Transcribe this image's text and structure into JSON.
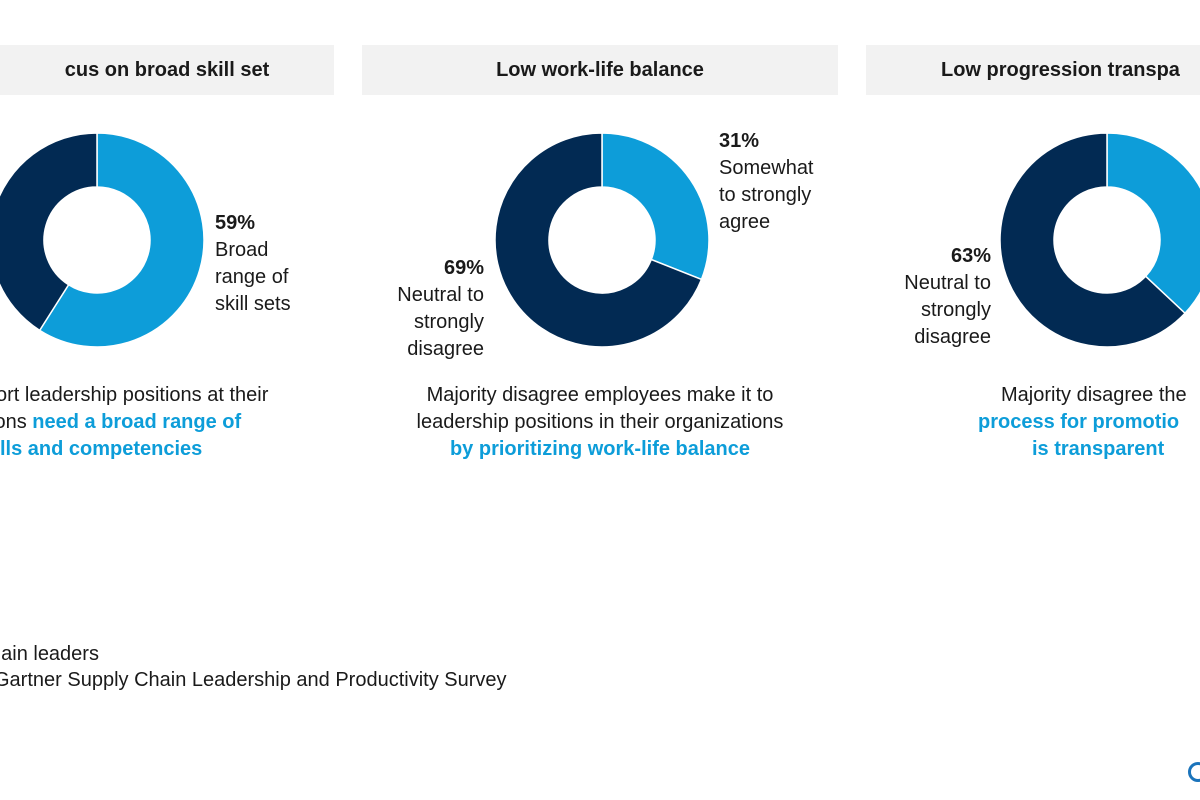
{
  "colors": {
    "dark": "#022a53",
    "light": "#0d9dd9"
  },
  "panels": [
    {
      "header": "cus on broad skill set",
      "label_pct": "59%",
      "label_lines": [
        "Broad",
        "range of",
        "skill sets"
      ],
      "caption_line1": "ort leadership positions at their",
      "caption_line2_plain": "ions ",
      "caption_line2_em": "need a broad range of",
      "caption_line3_em": "lls and competencies"
    },
    {
      "header": "Low work-life balance",
      "label_a_pct": "31%",
      "label_a_lines": [
        "Somewhat",
        "to strongly",
        "agree"
      ],
      "label_b_pct": "69%",
      "label_b_lines": [
        "Neutral to",
        "strongly",
        "disagree"
      ],
      "caption_line1": "Majority disagree employees make it to",
      "caption_line2": "leadership positions in their organizations",
      "caption_line3_em": "by prioritizing work-life balance"
    },
    {
      "header": "Low progression transpa",
      "label_pct": "63%",
      "label_lines": [
        "Neutral to",
        "strongly",
        "disagree"
      ],
      "caption_line1": "Majority disagree the",
      "caption_line2_em": "process for promotio",
      "caption_line3_em": "is transparent"
    }
  ],
  "chart_data": [
    {
      "type": "pie",
      "title": "cus on broad skill set",
      "slices": [
        {
          "label": "Broad range of skill sets",
          "value": 59
        },
        {
          "label": "Other",
          "value": 41
        }
      ]
    },
    {
      "type": "pie",
      "title": "Low work-life balance",
      "slices": [
        {
          "label": "Somewhat to strongly agree",
          "value": 31
        },
        {
          "label": "Neutral to strongly disagree",
          "value": 69
        }
      ]
    },
    {
      "type": "pie",
      "title": "Low progression transpa",
      "slices": [
        {
          "label": "Other",
          "value": 37
        },
        {
          "label": "Neutral to strongly disagree",
          "value": 63
        }
      ]
    }
  ],
  "footer": {
    "line1": "chain leaders",
    "line2": "Gartner Supply Chain Leadership and Productivity Survey"
  }
}
